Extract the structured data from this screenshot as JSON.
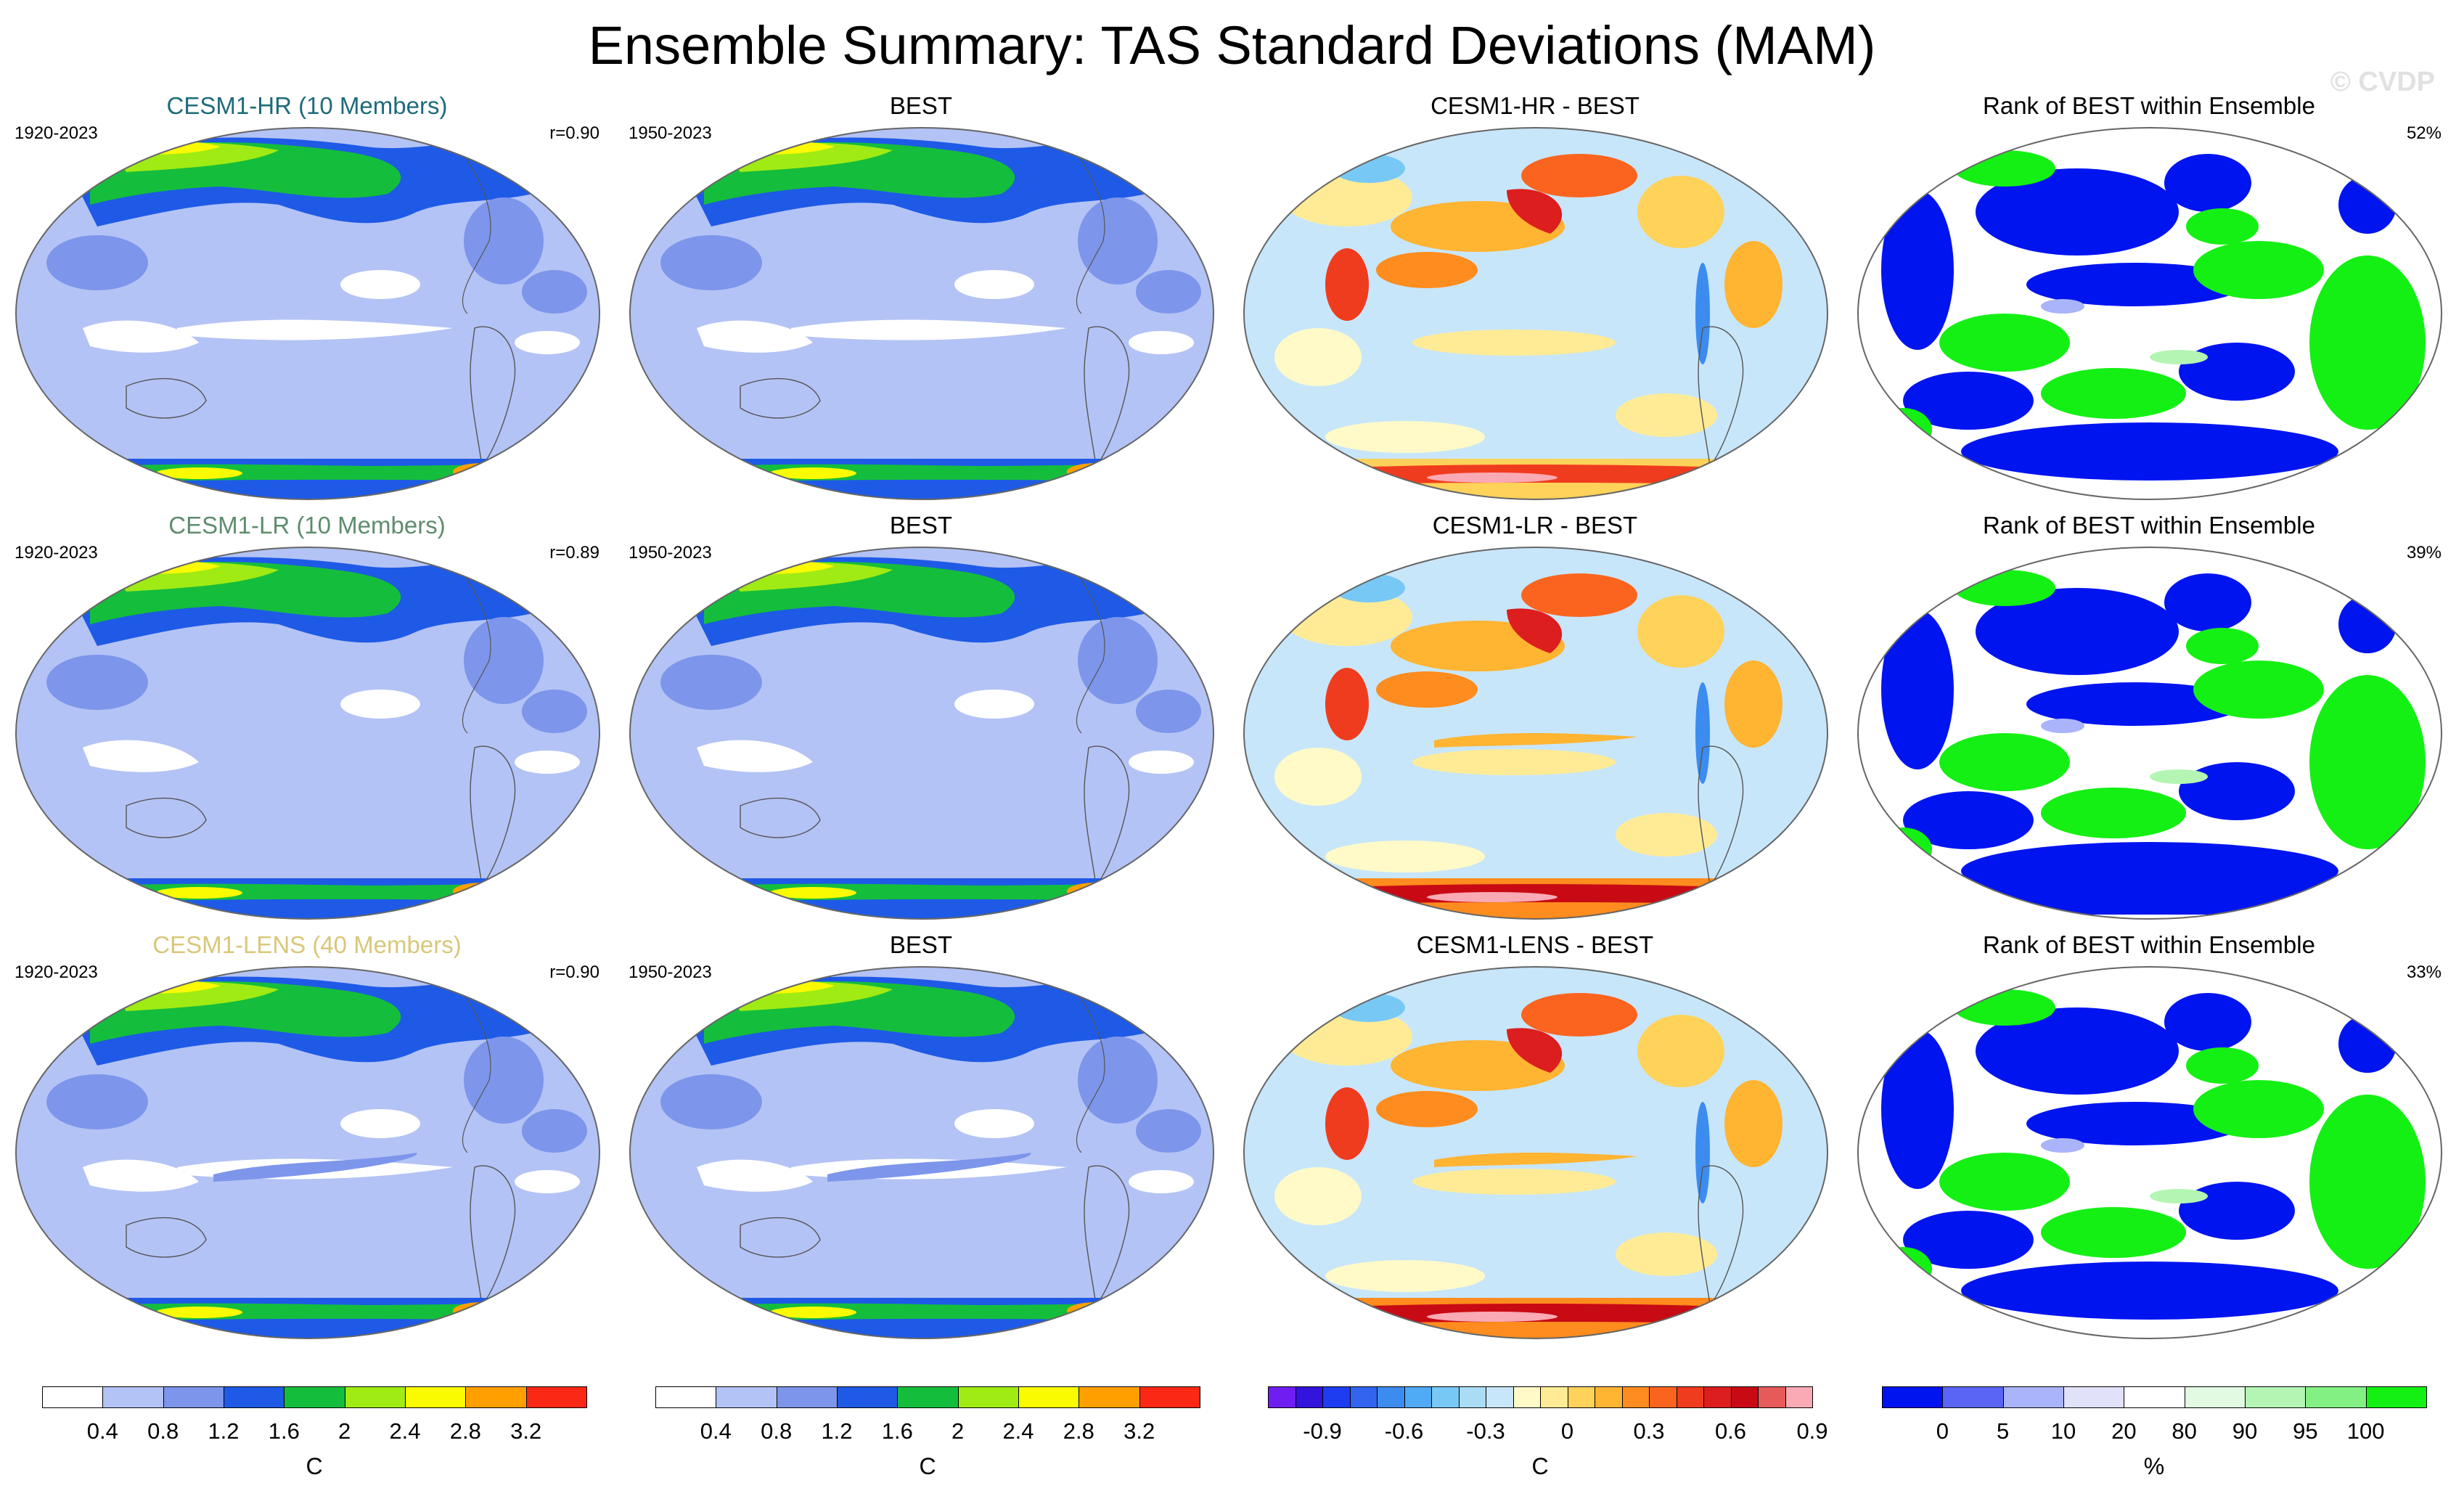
{
  "figure": {
    "title": "Ensemble Summary: TAS Standard Deviations (MAM)",
    "watermark": "© CVDP"
  },
  "chart_data": [
    {
      "type": "heatmap",
      "panel": "row1-col1",
      "title": "CESM1-HR (10 Members)",
      "title_color": "#1e6b7a",
      "left_label": "1920-2023",
      "right_label": "r=0.90",
      "pattern": "std",
      "colorbar": "std"
    },
    {
      "type": "heatmap",
      "panel": "row1-col2",
      "title": "BEST",
      "title_color": "#000000",
      "left_label": "1950-2023",
      "right_label": "",
      "pattern": "std",
      "colorbar": "std"
    },
    {
      "type": "heatmap",
      "panel": "row1-col3",
      "title": "CESM1-HR - BEST",
      "title_color": "#000000",
      "left_label": "",
      "right_label": "",
      "pattern": "diff",
      "colorbar": "diff"
    },
    {
      "type": "heatmap",
      "panel": "row1-col4",
      "title": "Rank of BEST within Ensemble",
      "title_color": "#000000",
      "left_label": "",
      "right_label": "52%",
      "pattern": "rank",
      "colorbar": "rank"
    },
    {
      "type": "heatmap",
      "panel": "row2-col1",
      "title": "CESM1-LR (10 Members)",
      "title_color": "#5f8c6e",
      "left_label": "1920-2023",
      "right_label": "r=0.89",
      "pattern": "std",
      "colorbar": "std"
    },
    {
      "type": "heatmap",
      "panel": "row2-col2",
      "title": "BEST",
      "title_color": "#000000",
      "left_label": "1950-2023",
      "right_label": "",
      "pattern": "std",
      "colorbar": "std"
    },
    {
      "type": "heatmap",
      "panel": "row2-col3",
      "title": "CESM1-LR - BEST",
      "title_color": "#000000",
      "left_label": "",
      "right_label": "",
      "pattern": "diff",
      "colorbar": "diff"
    },
    {
      "type": "heatmap",
      "panel": "row2-col4",
      "title": "Rank of BEST within Ensemble",
      "title_color": "#000000",
      "left_label": "",
      "right_label": "39%",
      "pattern": "rank",
      "colorbar": "rank"
    },
    {
      "type": "heatmap",
      "panel": "row3-col1",
      "title": "CESM1-LENS (40 Members)",
      "title_color": "#d9c77a",
      "left_label": "1920-2023",
      "right_label": "r=0.90",
      "pattern": "std",
      "colorbar": "std"
    },
    {
      "type": "heatmap",
      "panel": "row3-col2",
      "title": "BEST",
      "title_color": "#000000",
      "left_label": "1950-2023",
      "right_label": "",
      "pattern": "std",
      "colorbar": "std"
    },
    {
      "type": "heatmap",
      "panel": "row3-col3",
      "title": "CESM1-LENS - BEST",
      "title_color": "#000000",
      "left_label": "",
      "right_label": "",
      "pattern": "diff",
      "colorbar": "diff"
    },
    {
      "type": "heatmap",
      "panel": "row3-col4",
      "title": "Rank of BEST within Ensemble",
      "title_color": "#000000",
      "left_label": "",
      "right_label": "33%",
      "pattern": "rank",
      "colorbar": "rank"
    }
  ],
  "colorbars": {
    "std": {
      "unit": "C",
      "colors": [
        "#ffffff",
        "#b4c3f5",
        "#7d96eb",
        "#1e5ae6",
        "#14be3c",
        "#a0eb14",
        "#fafa00",
        "#ffa000",
        "#fa2814"
      ],
      "tick_labels": [
        "0.4",
        "0.8",
        "1.2",
        "1.6",
        "2",
        "2.4",
        "2.8",
        "3.2"
      ]
    },
    "diff": {
      "unit": "C",
      "colors": [
        "#6e1ef0",
        "#3214dc",
        "#1e3cf0",
        "#3264f0",
        "#3c8cf0",
        "#50aaf5",
        "#78c8f5",
        "#aadcf5",
        "#c8e6fa",
        "#fffac8",
        "#ffeb96",
        "#ffd25a",
        "#ffb432",
        "#ff8c1e",
        "#fa641e",
        "#f03c1e",
        "#dc1e1e",
        "#c80a14",
        "#e65a5a",
        "#faaab4"
      ],
      "tick_labels": [
        "-0.9",
        "-0.6",
        "-0.3",
        "0",
        "0.3",
        "0.6",
        "0.9"
      ]
    },
    "rank": {
      "unit": "%",
      "colors": [
        "#0014f0",
        "#5a64f5",
        "#aab4fa",
        "#e1e1fa",
        "#ffffff",
        "#e1fae1",
        "#b4f5b4",
        "#82f082",
        "#14f014"
      ],
      "tick_labels": [
        "0",
        "5",
        "10",
        "20",
        "80",
        "90",
        "95",
        "100"
      ]
    }
  }
}
